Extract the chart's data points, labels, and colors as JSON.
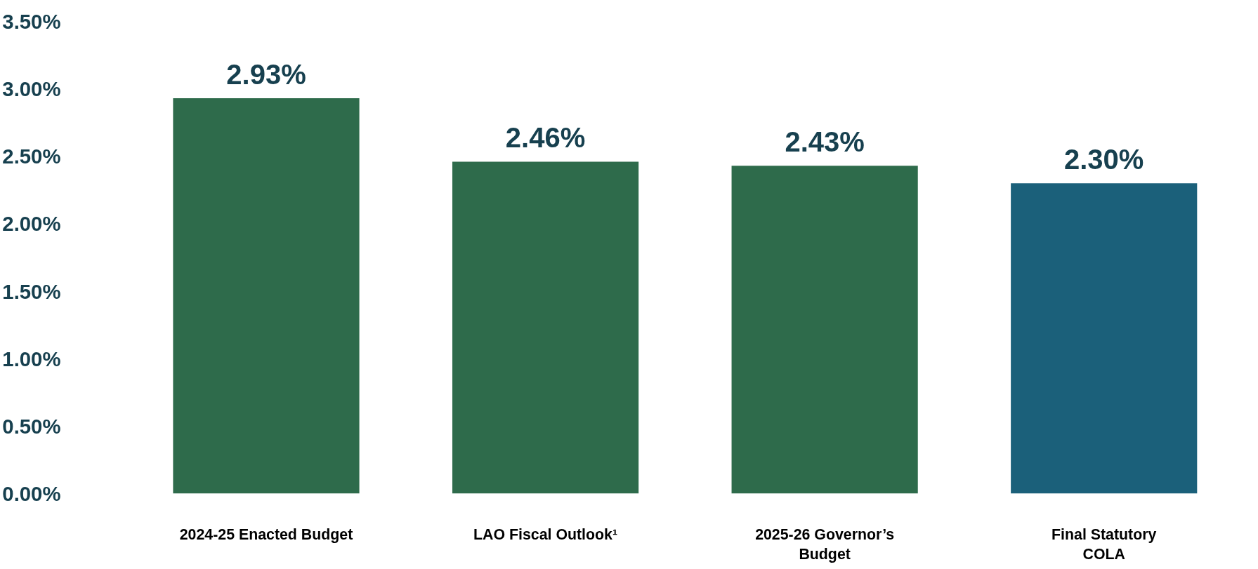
{
  "chart_data": {
    "type": "bar",
    "categories": [
      "2024-25 Enacted Budget",
      "LAO Fiscal Outlook¹",
      "2025-26 Governor’s\nBudget",
      "Final Statutory\nCOLA"
    ],
    "values": [
      2.93,
      2.46,
      2.43,
      2.3
    ],
    "colors": [
      "#2e6b4b",
      "#2e6b4b",
      "#2e6b4b",
      "#1b607a"
    ],
    "value_labels": [
      "2.93%",
      "2.46%",
      "2.43%",
      "2.30%"
    ],
    "ylim": [
      0,
      3.5
    ],
    "yticks": [
      {
        "value": 0,
        "label": "0.00%"
      },
      {
        "value": 0.5,
        "label": "0.50%"
      },
      {
        "value": 1,
        "label": "1.00%"
      },
      {
        "value": 1.5,
        "label": "1.50%"
      },
      {
        "value": 2,
        "label": "2.00%"
      },
      {
        "value": 2.5,
        "label": "2.50%"
      },
      {
        "value": 3,
        "label": "3.00%"
      },
      {
        "value": 3.5,
        "label": "3.50%"
      }
    ],
    "grid": false
  }
}
